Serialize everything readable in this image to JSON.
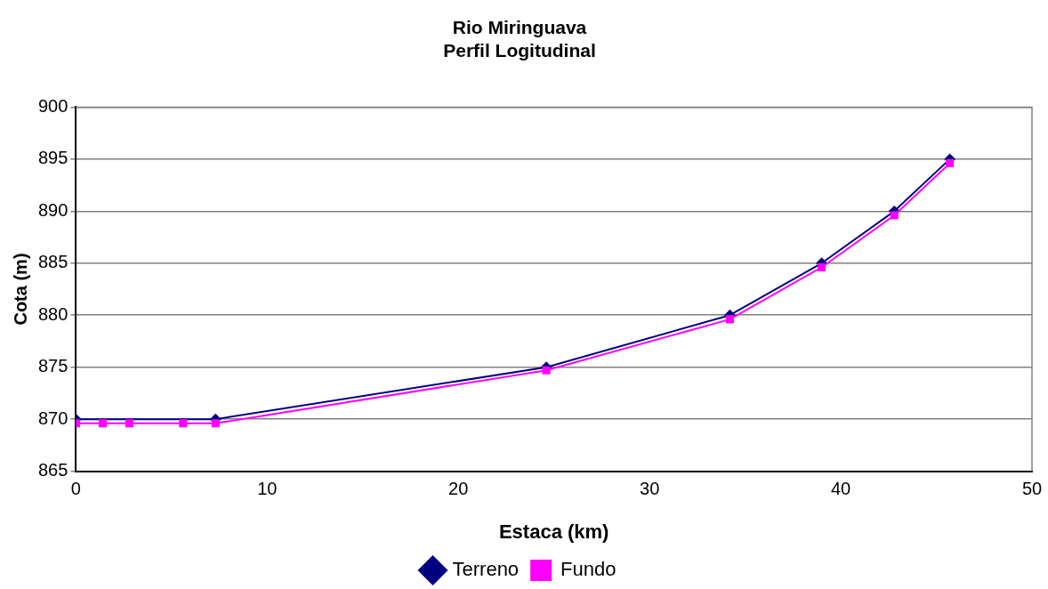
{
  "chart_data": {
    "type": "line",
    "title": [
      "Rio Miringuava",
      "Perfil Logitudinal"
    ],
    "xlabel": "Estaca (km)",
    "ylabel": "Cota (m)",
    "series": [
      {
        "name": "Terreno",
        "color": "#000080",
        "marker": "diamond",
        "x": [
          0,
          7.3,
          24.6,
          34.2,
          39,
          42.8,
          45.7
        ],
        "values": [
          870,
          870,
          875,
          880,
          885,
          890,
          895
        ]
      },
      {
        "name": "Fundo",
        "color": "#ff00ff",
        "marker": "square",
        "x": [
          0,
          1.4,
          2.8,
          5.6,
          7.3,
          24.6,
          34.2,
          39,
          42.8,
          45.7
        ],
        "values": [
          869.6,
          869.6,
          869.6,
          869.6,
          869.6,
          874.7,
          879.6,
          884.6,
          889.6,
          894.6
        ]
      }
    ],
    "xlim": [
      0,
      50
    ],
    "xticks": [
      0,
      10,
      20,
      30,
      40,
      50
    ],
    "ylim": [
      865,
      900
    ],
    "yticks": [
      865,
      870,
      875,
      880,
      885,
      890,
      895,
      900
    ],
    "grid": "y",
    "legend": "bottom",
    "line_style": "solid"
  }
}
